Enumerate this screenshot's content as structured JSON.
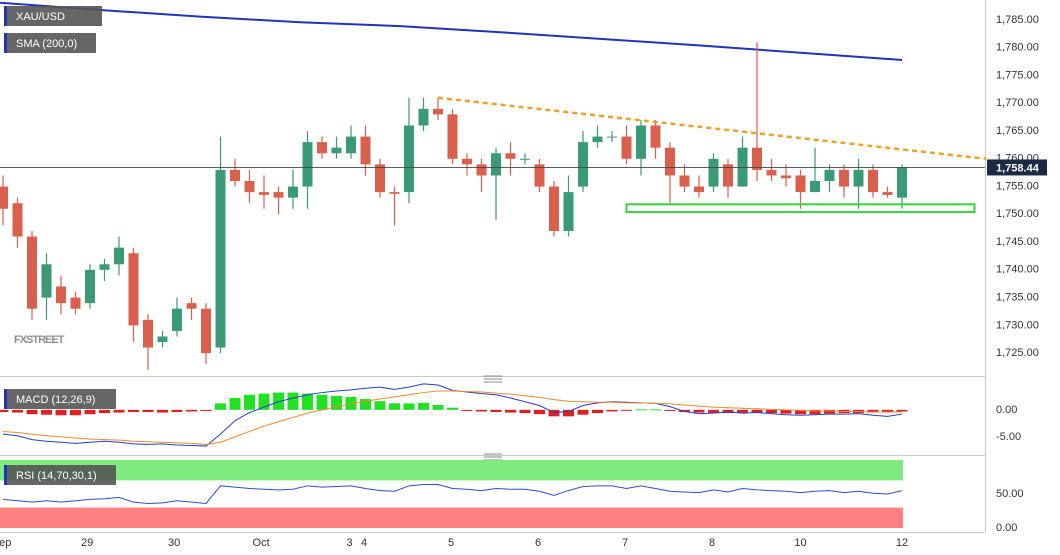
{
  "chart_data": [
    {
      "type": "candlestick",
      "name": "XAU/USD",
      "up_color": "#3a9a76",
      "down_color": "#d8604c",
      "ylim": [
        1721.6,
        1788.6
      ],
      "yticks": [
        {
          "value": 1725,
          "label": "1,725.00"
        },
        {
          "value": 1730,
          "label": "1,730.00"
        },
        {
          "value": 1735,
          "label": "1,735.00"
        },
        {
          "value": 1740,
          "label": "1,740.00"
        },
        {
          "value": 1745,
          "label": "1,745.00"
        },
        {
          "value": 1750,
          "label": "1,750.00"
        },
        {
          "value": 1755,
          "label": "1,755.00"
        },
        {
          "value": 1760,
          "label": "1,760.00"
        },
        {
          "value": 1765,
          "label": "1,765.00"
        },
        {
          "value": 1770,
          "label": "1,770.00"
        },
        {
          "value": 1775,
          "label": "1,775.00"
        },
        {
          "value": 1780,
          "label": "1,780.00"
        },
        {
          "value": 1785,
          "label": "1,785.00"
        }
      ],
      "open": [
        1755,
        1752,
        1746,
        1735,
        1737,
        1735,
        1734,
        1740,
        1741,
        1743,
        1731,
        1727,
        1729,
        1734,
        1733,
        1726,
        1758,
        1756,
        1754,
        1754,
        1753,
        1755,
        1763,
        1761,
        1761,
        1764,
        1759,
        1754,
        1754,
        1766,
        1769,
        1768,
        1760,
        1759,
        1757,
        1761,
        1760,
        1759,
        1755,
        1747,
        1755,
        1763,
        1764,
        1764,
        1760,
        1766,
        1762,
        1757,
        1755,
        1755,
        1759,
        1755,
        1762,
        1758,
        1757,
        1757,
        1754,
        1756,
        1758,
        1755,
        1758,
        1754,
        1753
      ],
      "high": [
        1757,
        1753,
        1747,
        1743,
        1739,
        1736,
        1741,
        1742,
        1746,
        1744,
        1732,
        1729,
        1735,
        1735,
        1734,
        1764,
        1760,
        1758,
        1757,
        1755,
        1758,
        1765,
        1764,
        1764,
        1766,
        1766,
        1760,
        1755,
        1771,
        1771,
        1771,
        1769,
        1761,
        1760,
        1762,
        1763,
        1761,
        1760,
        1756,
        1757,
        1765,
        1766,
        1765,
        1766,
        1767,
        1767,
        1763,
        1759,
        1757,
        1761,
        1760,
        1764,
        1781,
        1760,
        1759,
        1758,
        1762,
        1759,
        1759,
        1760,
        1759,
        1755,
        1759
      ],
      "low": [
        1748,
        1744,
        1731,
        1731,
        1732,
        1732,
        1733,
        1738,
        1739,
        1727,
        1722,
        1726,
        1728,
        1731,
        1723,
        1725,
        1755,
        1752,
        1751,
        1750,
        1751,
        1751,
        1760,
        1760,
        1760,
        1757,
        1753,
        1748,
        1752,
        1765,
        1767,
        1759,
        1757,
        1754,
        1749,
        1757,
        1759,
        1754,
        1746,
        1746,
        1754,
        1762,
        1763,
        1759,
        1757,
        1760,
        1752,
        1754,
        1753,
        1754,
        1753,
        1755,
        1756,
        1756,
        1755,
        1751,
        1754,
        1754,
        1753,
        1751,
        1753,
        1753,
        1751
      ],
      "close": [
        1751,
        1746,
        1733,
        1741,
        1734,
        1733,
        1740,
        1741,
        1744,
        1730,
        1726,
        1728,
        1733,
        1733,
        1725,
        1758,
        1756,
        1754,
        1753.5,
        1753,
        1755,
        1763,
        1761,
        1762,
        1764,
        1759,
        1754,
        1753.7,
        1766,
        1769,
        1768,
        1760,
        1759,
        1757,
        1761,
        1760,
        1760,
        1755,
        1747,
        1754,
        1763,
        1764,
        1764,
        1760,
        1766,
        1762,
        1757,
        1755,
        1754,
        1760,
        1755,
        1762,
        1758,
        1757,
        1756.5,
        1754,
        1756,
        1758,
        1755,
        1758,
        1754,
        1753.5,
        1758.44
      ],
      "last_price": {
        "value": 1758.44,
        "label": "1,758.44"
      },
      "sma": {
        "name": "SMA (200,0)",
        "color": "#2233b8",
        "x": [
          -0.2,
          6.7,
          13.6,
          20.5,
          27.4,
          34.3,
          41.2,
          48.1,
          55,
          62
        ],
        "values": [
          1788.1,
          1786.8,
          1785.6,
          1784.6,
          1783.9,
          1782.8,
          1781.6,
          1780.4,
          1779.1,
          1777.8
        ]
      },
      "annotations": [
        {
          "type": "trendline",
          "color": "#f0a028",
          "x": [
            30,
            67.8
          ],
          "values": [
            1771,
            1760
          ]
        },
        {
          "type": "zone",
          "color": "#3ccf3c",
          "x": [
            43,
            67
          ],
          "values": [
            1750.4,
            1751.8
          ]
        }
      ],
      "watermark": "FXSTREET"
    },
    {
      "type": "macd",
      "title": "MACD (12,26,9)",
      "ylim": [
        -7.8,
        4.6
      ],
      "yticks": [
        {
          "value": 0,
          "label": "0.00"
        },
        {
          "value": -5,
          "label": "-5.00"
        }
      ],
      "positive_color": "#22e022",
      "negative_color": "#e02020",
      "histogram": [
        -0.4,
        -0.5,
        -0.8,
        -0.9,
        -1,
        -1,
        -0.8,
        -0.6,
        -0.5,
        -0.4,
        -0.4,
        -0.5,
        -0.4,
        -0.3,
        -0.2,
        1.2,
        2.2,
        2.8,
        3,
        3.2,
        3.2,
        3,
        2.8,
        2.6,
        2.4,
        2,
        1.6,
        1.2,
        1.2,
        1.3,
        0.9,
        0.4,
        -0.2,
        -0.3,
        -0.4,
        -0.5,
        -0.6,
        -0.8,
        -1.2,
        -1.2,
        -0.9,
        -0.6,
        -0.3,
        -0.1,
        0.1,
        0.1,
        -0.2,
        -0.4,
        -0.5,
        -0.6,
        -0.6,
        -0.5,
        -0.5,
        -0.6,
        -0.7,
        -0.8,
        -0.8,
        -0.7,
        -0.6,
        -0.6,
        -0.5,
        -0.4,
        -0.3
      ],
      "series": [
        {
          "color": "#2540c8",
          "values": [
            -4.5,
            -4.8,
            -5.5,
            -5.8,
            -6,
            -6.2,
            -6,
            -5.8,
            -6,
            -6.3,
            -6.4,
            -6.3,
            -6.5,
            -6.6,
            -6.7,
            -4.5,
            -2,
            -0.5,
            0.5,
            1.5,
            2.2,
            2.8,
            3.2,
            3.5,
            3.7,
            4,
            4.2,
            3.8,
            4.2,
            4.8,
            4.6,
            3.6,
            3.3,
            3,
            2.8,
            2.2,
            1.5,
            0.8,
            -0.5,
            -0.3,
            0.8,
            1.3,
            1.5,
            1.4,
            1.3,
            1.2,
            0.6,
            -0.3,
            -0.7,
            -0.6,
            -0.4,
            -0.6,
            -0.5,
            -0.7,
            -0.9,
            -1,
            -0.9,
            -0.8,
            -0.8,
            -0.7,
            -1,
            -1.2,
            -0.8
          ]
        },
        {
          "color": "#f08a30",
          "values": [
            -4,
            -4.2,
            -4.5,
            -4.8,
            -5,
            -5.2,
            -5.4,
            -5.5,
            -5.6,
            -5.8,
            -5.9,
            -6,
            -6.1,
            -6.2,
            -6.4,
            -6,
            -5,
            -4,
            -3,
            -2.2,
            -1.4,
            -0.6,
            0,
            0.6,
            1.1,
            1.6,
            2,
            2.4,
            2.8,
            3.2,
            3.5,
            3.5,
            3.4,
            3.3,
            3.1,
            2.9,
            2.6,
            2.3,
            1.9,
            1.6,
            1.5,
            1.4,
            1.4,
            1.3,
            1.3,
            1.2,
            1.1,
            0.9,
            0.7,
            0.5,
            0.4,
            0.3,
            0.2,
            0.1,
            0,
            -0.1,
            -0.2,
            -0.2,
            -0.3,
            -0.3,
            -0.4,
            -0.4,
            -0.4
          ]
        }
      ]
    },
    {
      "type": "rsi",
      "title": "RSI (14,70,30,1)",
      "ylim": [
        -3,
        100
      ],
      "yticks": [
        {
          "value": 50,
          "label": "50.00"
        },
        {
          "value": 0,
          "label": "0.00"
        }
      ],
      "bands": [
        {
          "values": [
            70,
            100
          ],
          "color": "#7fea7f"
        },
        {
          "values": [
            0,
            30
          ],
          "color": "#ff8080"
        }
      ],
      "color": "#2f4fd0",
      "values": [
        42,
        40,
        38,
        40,
        38,
        40,
        42,
        43,
        45,
        38,
        36,
        37,
        40,
        38,
        36,
        62,
        60,
        58,
        57,
        56,
        57,
        62,
        60,
        61,
        62,
        58,
        55,
        54,
        62,
        64,
        64,
        58,
        57,
        55,
        58,
        57,
        57,
        54,
        48,
        55,
        61,
        62,
        62,
        58,
        62,
        58,
        54,
        53,
        52,
        56,
        53,
        58,
        56,
        55,
        54,
        52,
        54,
        55,
        52,
        54,
        51,
        50,
        55
      ],
      "xticks": [
        {
          "value": -0.1,
          "label": "Sep"
        },
        {
          "value": 5.8,
          "label": "29"
        },
        {
          "value": 11.8,
          "label": "30"
        },
        {
          "value": 17.8,
          "label": "Oct"
        },
        {
          "value": 23.9,
          "label": "3"
        },
        {
          "value": 24.9,
          "label": "4"
        },
        {
          "value": 30.9,
          "label": "5"
        },
        {
          "value": 36.9,
          "label": "6"
        },
        {
          "value": 42.9,
          "label": "7"
        },
        {
          "value": 48.9,
          "label": "8"
        },
        {
          "value": 55,
          "label": "10"
        },
        {
          "value": 62,
          "label": "12"
        }
      ]
    }
  ]
}
